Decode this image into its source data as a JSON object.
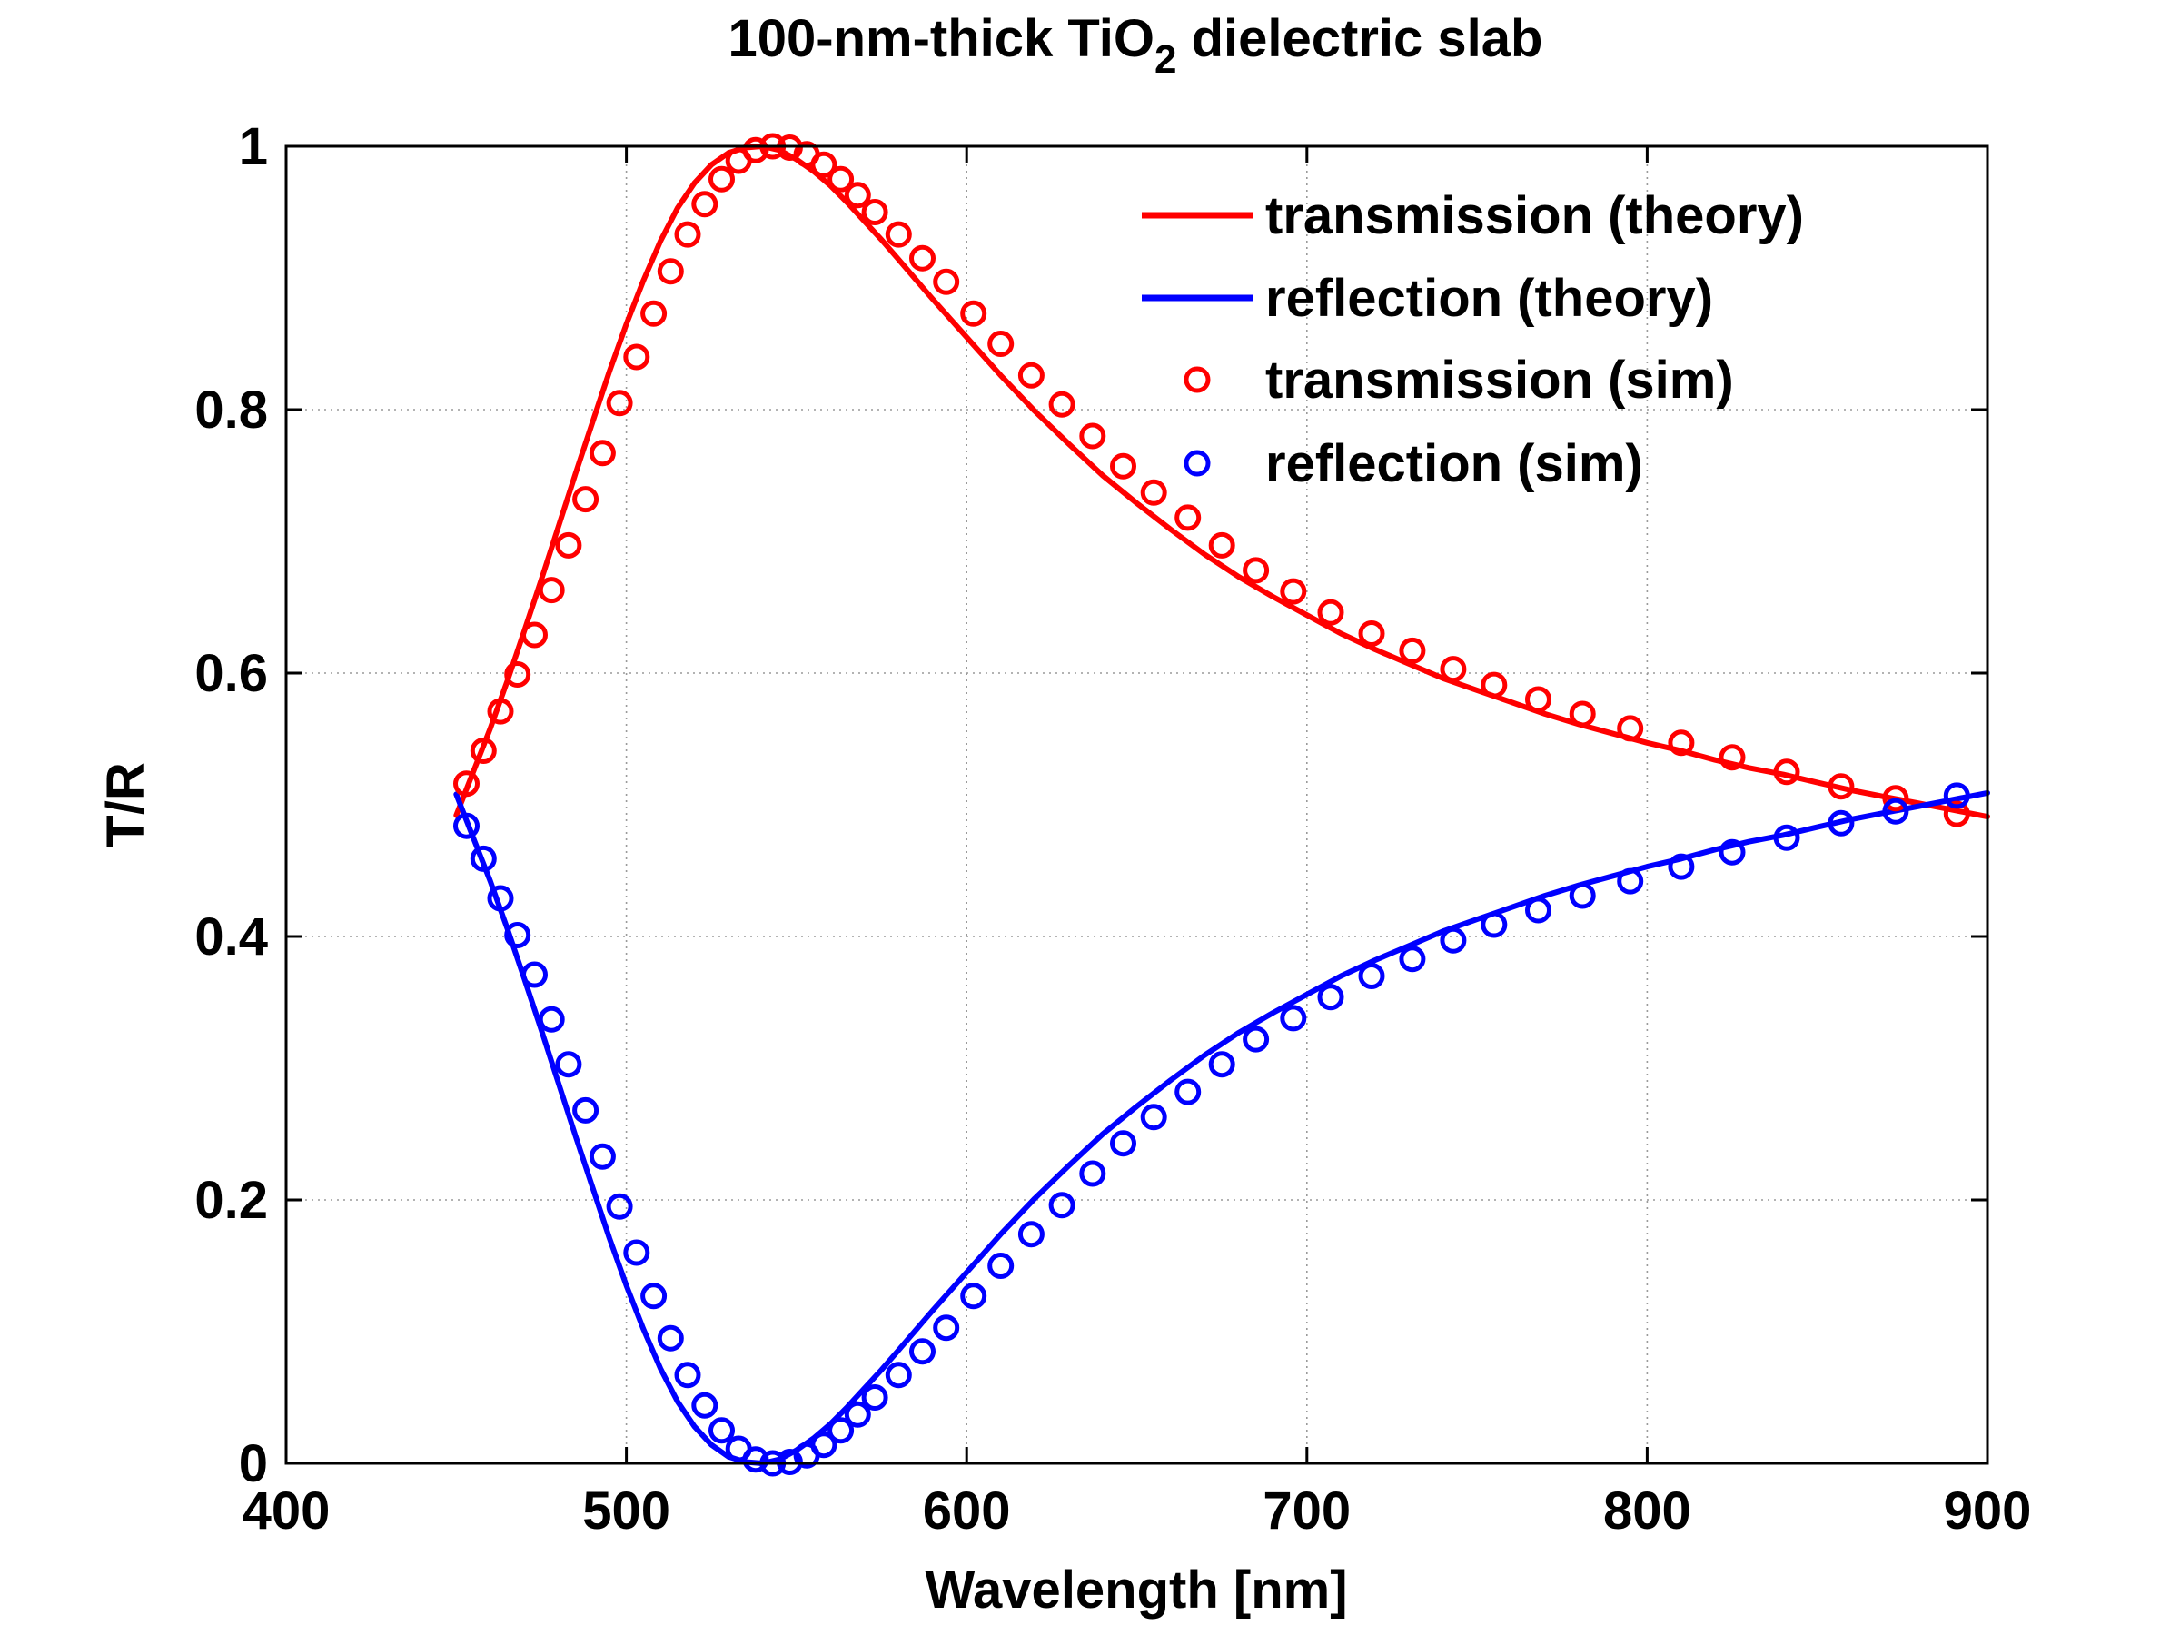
{
  "chart_data": {
    "type": "line",
    "title": "100-nm-thick TiO",
    "title_subscript": "2",
    "title_suffix": " dielectric slab",
    "xlabel": "Wavelength [nm]",
    "ylabel": "T/R",
    "xlim": [
      400,
      900
    ],
    "ylim": [
      0,
      1
    ],
    "x_ticks": [
      400,
      500,
      600,
      700,
      800,
      900
    ],
    "x_tick_labels": [
      "400",
      "500",
      "600",
      "700",
      "800",
      "900"
    ],
    "y_ticks": [
      0,
      0.2,
      0.4,
      0.6,
      0.8,
      1
    ],
    "y_tick_labels": [
      "0",
      "0.2",
      "0.4",
      "0.6",
      "0.8",
      "1"
    ],
    "grid": true,
    "legend_position": "top-right",
    "series": [
      {
        "name": "transmission (theory)",
        "style": "line",
        "color": "#ff0000",
        "x": [
          450,
          455,
          460,
          465,
          470,
          475,
          480,
          485,
          490,
          495,
          500,
          505,
          510,
          515,
          520,
          525,
          530,
          535,
          540,
          545,
          550,
          555,
          560,
          565,
          570,
          575,
          580,
          585,
          590,
          600,
          610,
          620,
          630,
          640,
          650,
          660,
          670,
          680,
          690,
          700,
          710,
          720,
          730,
          740,
          750,
          760,
          770,
          780,
          790,
          800,
          810,
          820,
          830,
          840,
          850,
          860,
          870,
          880,
          890,
          900
        ],
        "y": [
          0.492,
          0.525,
          0.558,
          0.594,
          0.632,
          0.671,
          0.711,
          0.751,
          0.79,
          0.829,
          0.865,
          0.898,
          0.928,
          0.953,
          0.972,
          0.986,
          0.995,
          0.999,
          1.0,
          0.997,
          0.99,
          0.981,
          0.97,
          0.957,
          0.943,
          0.929,
          0.914,
          0.899,
          0.884,
          0.855,
          0.826,
          0.799,
          0.774,
          0.75,
          0.729,
          0.709,
          0.69,
          0.673,
          0.658,
          0.644,
          0.63,
          0.618,
          0.607,
          0.596,
          0.587,
          0.578,
          0.569,
          0.561,
          0.554,
          0.547,
          0.541,
          0.534,
          0.528,
          0.523,
          0.517,
          0.511,
          0.506,
          0.501,
          0.496,
          0.491
        ]
      },
      {
        "name": "reflection (theory)",
        "style": "line",
        "color": "#0000ff",
        "x": [
          450,
          455,
          460,
          465,
          470,
          475,
          480,
          485,
          490,
          495,
          500,
          505,
          510,
          515,
          520,
          525,
          530,
          535,
          540,
          545,
          550,
          555,
          560,
          565,
          570,
          575,
          580,
          585,
          590,
          600,
          610,
          620,
          630,
          640,
          650,
          660,
          670,
          680,
          690,
          700,
          710,
          720,
          730,
          740,
          750,
          760,
          770,
          780,
          790,
          800,
          810,
          820,
          830,
          840,
          850,
          860,
          870,
          880,
          890,
          900
        ],
        "y": [
          0.508,
          0.475,
          0.442,
          0.406,
          0.368,
          0.329,
          0.289,
          0.249,
          0.21,
          0.171,
          0.135,
          0.102,
          0.072,
          0.047,
          0.028,
          0.014,
          0.005,
          0.001,
          0.0,
          0.003,
          0.01,
          0.019,
          0.03,
          0.043,
          0.057,
          0.071,
          0.086,
          0.101,
          0.116,
          0.145,
          0.174,
          0.201,
          0.226,
          0.25,
          0.271,
          0.291,
          0.31,
          0.327,
          0.342,
          0.356,
          0.37,
          0.382,
          0.393,
          0.404,
          0.413,
          0.422,
          0.431,
          0.439,
          0.446,
          0.453,
          0.459,
          0.466,
          0.472,
          0.477,
          0.483,
          0.489,
          0.494,
          0.499,
          0.504,
          0.509
        ]
      },
      {
        "name": "transmission (sim)",
        "style": "markers",
        "marker": "circle",
        "color": "#ff0000",
        "x": [
          453,
          458,
          463,
          468,
          473,
          478,
          483,
          488,
          493,
          498,
          503,
          508,
          513,
          518,
          523,
          528,
          533,
          538,
          543,
          548,
          553,
          558,
          563,
          568,
          573,
          580,
          587,
          594,
          602,
          610,
          619,
          628,
          637,
          646,
          655,
          665,
          675,
          685,
          696,
          707,
          719,
          731,
          743,
          755,
          768,
          781,
          795,
          810,
          825,
          841,
          857,
          873,
          891
        ],
        "y": [
          0.516,
          0.541,
          0.571,
          0.599,
          0.629,
          0.663,
          0.697,
          0.732,
          0.767,
          0.805,
          0.84,
          0.873,
          0.905,
          0.933,
          0.956,
          0.975,
          0.989,
          0.997,
          1.0,
          0.999,
          0.994,
          0.986,
          0.975,
          0.963,
          0.95,
          0.933,
          0.915,
          0.897,
          0.873,
          0.85,
          0.826,
          0.804,
          0.78,
          0.757,
          0.737,
          0.718,
          0.697,
          0.678,
          0.662,
          0.646,
          0.63,
          0.617,
          0.603,
          0.591,
          0.58,
          0.569,
          0.558,
          0.547,
          0.536,
          0.525,
          0.514,
          0.505,
          0.493
        ]
      },
      {
        "name": "reflection (sim)",
        "style": "markers",
        "marker": "circle",
        "color": "#0000ff",
        "x": [
          453,
          458,
          463,
          468,
          473,
          478,
          483,
          488,
          493,
          498,
          503,
          508,
          513,
          518,
          523,
          528,
          533,
          538,
          543,
          548,
          553,
          558,
          563,
          568,
          573,
          580,
          587,
          594,
          602,
          610,
          619,
          628,
          637,
          646,
          655,
          665,
          675,
          685,
          696,
          707,
          719,
          731,
          743,
          755,
          768,
          781,
          795,
          810,
          825,
          841,
          857,
          873,
          891
        ],
        "y": [
          0.484,
          0.459,
          0.429,
          0.401,
          0.371,
          0.337,
          0.303,
          0.268,
          0.233,
          0.195,
          0.16,
          0.127,
          0.095,
          0.067,
          0.044,
          0.025,
          0.011,
          0.003,
          0.0,
          0.001,
          0.006,
          0.014,
          0.025,
          0.037,
          0.05,
          0.067,
          0.085,
          0.103,
          0.127,
          0.15,
          0.174,
          0.196,
          0.22,
          0.243,
          0.263,
          0.282,
          0.303,
          0.322,
          0.338,
          0.354,
          0.37,
          0.383,
          0.397,
          0.409,
          0.42,
          0.431,
          0.442,
          0.453,
          0.464,
          0.475,
          0.486,
          0.495,
          0.507
        ]
      }
    ]
  }
}
